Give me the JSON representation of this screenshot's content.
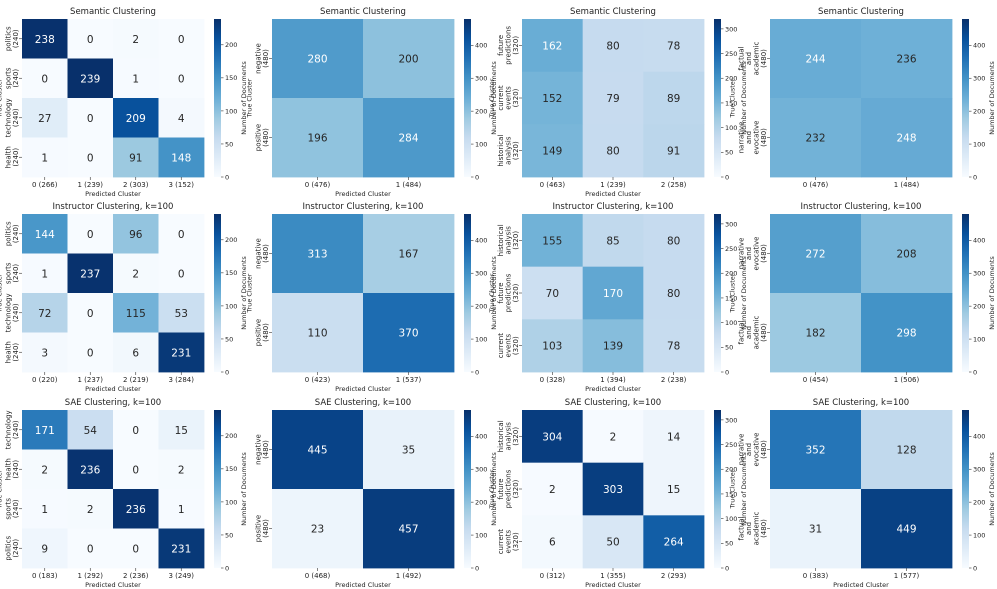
{
  "figure": {
    "background": "#ffffff"
  },
  "colorbar_label": "Number of Documents",
  "chart_data": [
    {
      "type": "heatmap",
      "title": "Semantic Clustering",
      "xlabel": "Predicted Cluster",
      "ylabel": "True Cluster",
      "row_labels": [
        [
          "politics",
          "(240)"
        ],
        [
          "sports",
          "(240)"
        ],
        [
          "technology",
          "(240)"
        ],
        [
          "health",
          "(240)"
        ]
      ],
      "col_labels": [
        "0 (266)",
        "1 (239)",
        "2 (303)",
        "3 (152)"
      ],
      "values": [
        [
          238,
          0,
          2,
          0
        ],
        [
          0,
          239,
          1,
          0
        ],
        [
          27,
          0,
          209,
          4
        ],
        [
          1,
          0,
          91,
          148
        ]
      ],
      "colorbar": {
        "max": 239,
        "ticks": [
          0,
          50,
          100,
          150,
          200
        ]
      }
    },
    {
      "type": "heatmap",
      "title": "Semantic Clustering",
      "xlabel": "Predicted Cluster",
      "ylabel": "True Cluster",
      "row_labels": [
        [
          "negative",
          "(480)"
        ],
        [
          "positive",
          "(480)"
        ]
      ],
      "col_labels": [
        "0 (476)",
        "1 (484)"
      ],
      "values": [
        [
          280,
          200
        ],
        [
          196,
          284
        ]
      ],
      "colorbar": {
        "max": 480,
        "ticks": [
          0,
          100,
          200,
          300,
          400
        ]
      }
    },
    {
      "type": "heatmap",
      "title": "Semantic Clustering",
      "xlabel": "Predicted Cluster",
      "ylabel": "True Cluster",
      "row_labels": [
        [
          "future",
          "predictions",
          "(320)"
        ],
        [
          "current",
          "events",
          "(320)"
        ],
        [
          "historical",
          "analysis",
          "(320)"
        ]
      ],
      "col_labels": [
        "0 (463)",
        "1 (239)",
        "2 (258)"
      ],
      "values": [
        [
          162,
          80,
          78
        ],
        [
          152,
          79,
          89
        ],
        [
          149,
          80,
          91
        ]
      ],
      "colorbar": {
        "max": 320,
        "ticks": [
          0,
          50,
          100,
          150,
          200,
          250,
          300
        ]
      }
    },
    {
      "type": "heatmap",
      "title": "Semantic Clustering",
      "xlabel": "",
      "ylabel": "True Cluster",
      "row_labels": [
        [
          "factual",
          "and",
          "academic",
          "(480)"
        ],
        [
          "narrative",
          "and",
          "evocative",
          "(480)"
        ]
      ],
      "col_labels": [
        "0 (476)",
        "1 (484)"
      ],
      "values": [
        [
          244,
          236
        ],
        [
          232,
          248
        ]
      ],
      "colorbar": {
        "max": 480,
        "ticks": [
          0,
          100,
          200,
          300,
          400
        ]
      }
    },
    {
      "type": "heatmap",
      "title": "Instructor Clustering, k=100",
      "xlabel": "Predicted Cluster",
      "ylabel": "True Cluster",
      "row_labels": [
        [
          "politics",
          "(240)"
        ],
        [
          "sports",
          "(240)"
        ],
        [
          "technology",
          "(240)"
        ],
        [
          "health",
          "(240)"
        ]
      ],
      "col_labels": [
        "0 (220)",
        "1 (237)",
        "2 (219)",
        "3 (284)"
      ],
      "values": [
        [
          144,
          0,
          96,
          0
        ],
        [
          1,
          237,
          2,
          0
        ],
        [
          72,
          0,
          115,
          53
        ],
        [
          3,
          0,
          6,
          231
        ]
      ],
      "colorbar": {
        "max": 239,
        "ticks": [
          0,
          50,
          100,
          150,
          200
        ]
      }
    },
    {
      "type": "heatmap",
      "title": "Instructor Clustering, k=100",
      "xlabel": "Predicted Cluster",
      "ylabel": "True Cluster",
      "row_labels": [
        [
          "negative",
          "(480)"
        ],
        [
          "positive",
          "(480)"
        ]
      ],
      "col_labels": [
        "0 (423)",
        "1 (537)"
      ],
      "values": [
        [
          313,
          167
        ],
        [
          110,
          370
        ]
      ],
      "colorbar": {
        "max": 480,
        "ticks": [
          0,
          100,
          200,
          300,
          400
        ]
      }
    },
    {
      "type": "heatmap",
      "title": "Instructor Clustering, k=100",
      "xlabel": "Predicted Cluster",
      "ylabel": "True Cluster",
      "row_labels": [
        [
          "historical",
          "analysis",
          "(320)"
        ],
        [
          "future",
          "predictions",
          "(320)"
        ],
        [
          "current",
          "events",
          "(320)"
        ]
      ],
      "col_labels": [
        "0 (328)",
        "1 (394)",
        "2 (238)"
      ],
      "values": [
        [
          155,
          85,
          80
        ],
        [
          70,
          170,
          80
        ],
        [
          103,
          139,
          78
        ]
      ],
      "colorbar": {
        "max": 320,
        "ticks": [
          0,
          50,
          100,
          150,
          200,
          250,
          300
        ]
      }
    },
    {
      "type": "heatmap",
      "title": "Instructor Clustering, k=100",
      "xlabel": "",
      "ylabel": "True Cluster",
      "row_labels": [
        [
          "narrative",
          "and",
          "evocative",
          "(480)"
        ],
        [
          "factual",
          "and",
          "academic",
          "(480)"
        ]
      ],
      "col_labels": [
        "0 (454)",
        "1 (506)"
      ],
      "values": [
        [
          272,
          208
        ],
        [
          182,
          298
        ]
      ],
      "colorbar": {
        "max": 480,
        "ticks": [
          0,
          100,
          200,
          300,
          400
        ]
      }
    },
    {
      "type": "heatmap",
      "title": "SAE Clustering, k=100",
      "xlabel": "Predicted Cluster",
      "ylabel": "True Cluster",
      "row_labels": [
        [
          "technology",
          "(240)"
        ],
        [
          "health",
          "(240)"
        ],
        [
          "sports",
          "(240)"
        ],
        [
          "politics",
          "(240)"
        ]
      ],
      "col_labels": [
        "0 (183)",
        "1 (292)",
        "2 (236)",
        "3 (249)"
      ],
      "values": [
        [
          171,
          54,
          0,
          15
        ],
        [
          2,
          236,
          0,
          2
        ],
        [
          1,
          2,
          236,
          1
        ],
        [
          9,
          0,
          0,
          231
        ]
      ],
      "colorbar": {
        "max": 239,
        "ticks": [
          0,
          50,
          100,
          150,
          200
        ]
      }
    },
    {
      "type": "heatmap",
      "title": "SAE Clustering, k=100",
      "xlabel": "Predicted Cluster",
      "ylabel": "",
      "row_labels": [
        [
          "negative",
          "(480)"
        ],
        [
          "positive",
          "(480)"
        ]
      ],
      "col_labels": [
        "0 (468)",
        "1 (492)"
      ],
      "values": [
        [
          445,
          35
        ],
        [
          23,
          457
        ]
      ],
      "colorbar": {
        "max": 480,
        "ticks": [
          0,
          100,
          200,
          300,
          400
        ]
      }
    },
    {
      "type": "heatmap",
      "title": "SAE Clustering, k=100",
      "xlabel": "Predicted Cluster",
      "ylabel": "True Cluster",
      "row_labels": [
        [
          "historical",
          "analysis",
          "(320)"
        ],
        [
          "future",
          "predictions",
          "(320)"
        ],
        [
          "current",
          "events",
          "(320)"
        ]
      ],
      "col_labels": [
        "0 (312)",
        "1 (355)",
        "2 (293)"
      ],
      "values": [
        [
          304,
          2,
          14
        ],
        [
          2,
          303,
          15
        ],
        [
          6,
          50,
          264
        ]
      ],
      "colorbar": {
        "max": 320,
        "ticks": [
          0,
          50,
          100,
          150,
          200,
          250,
          300
        ]
      }
    },
    {
      "type": "heatmap",
      "title": "SAE Clustering, k=100",
      "xlabel": "Predicted Cluster",
      "ylabel": "True Cluster",
      "row_labels": [
        [
          "narrative",
          "and",
          "evocative",
          "(480)"
        ],
        [
          "factual",
          "and",
          "academic",
          "(480)"
        ]
      ],
      "col_labels": [
        "0 (383)",
        "1 (577)"
      ],
      "values": [
        [
          352,
          128
        ],
        [
          31,
          449
        ]
      ],
      "colorbar": {
        "max": 480,
        "ticks": [
          0,
          100,
          200,
          300,
          400
        ]
      }
    }
  ]
}
